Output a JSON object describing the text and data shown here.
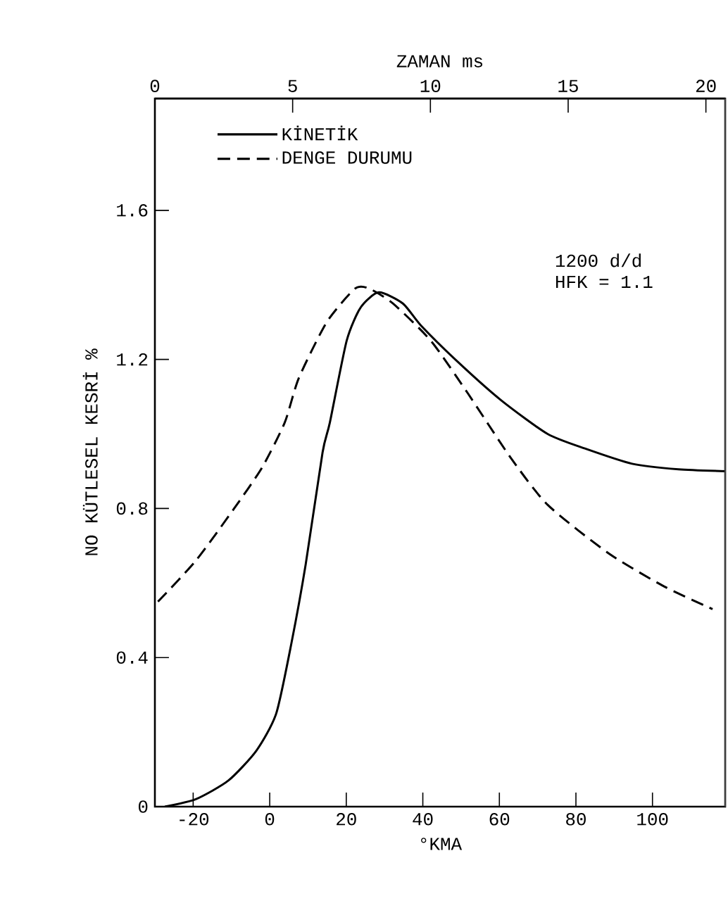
{
  "chart_data": {
    "type": "line",
    "xlabel": "°KMA",
    "ylabel": "NO  KÜTLESEL KESRİ  %",
    "x2label": "ZAMAN  ms",
    "xlim": [
      -30,
      119
    ],
    "xticks": [
      -20,
      0,
      20,
      40,
      60,
      80,
      100
    ],
    "x2lim": [
      0,
      20.7
    ],
    "x2ticks": [
      0,
      5,
      10,
      15,
      20
    ],
    "ylim": [
      0,
      1.9
    ],
    "yticks": [
      0,
      0.4,
      0.8,
      1.2,
      1.6
    ],
    "legend": "top left",
    "grid": false,
    "marker": "none",
    "annotations": [
      "1200 d/d",
      "HFK = 1.1"
    ],
    "series": [
      {
        "name": "KİNETİK",
        "color": "#000000",
        "line_style": "solid",
        "x": [
          -27.4,
          -19.3,
          -10.8,
          -3.5,
          1.7,
          5.7,
          9.4,
          13.8,
          15.7,
          20.1,
          23.8,
          28.5,
          34.8,
          39.6,
          49.5,
          60.5,
          72.6,
          82.6,
          94.7,
          106.8,
          119
        ],
        "values": [
          0,
          0.02,
          0.07,
          0.15,
          0.25,
          0.44,
          0.65,
          0.95,
          1.03,
          1.25,
          1.34,
          1.38,
          1.35,
          1.29,
          1.19,
          1.09,
          1.0,
          0.96,
          0.92,
          0.905,
          0.9
        ]
      },
      {
        "name": "DENGE DURUMU",
        "color": "#000000",
        "line_style": "dashed",
        "x": [
          -29.2,
          -19.3,
          -9.3,
          -2,
          3.9,
          7.6,
          14.9,
          22.3,
          26,
          32.2,
          42.1,
          51.7,
          62.7,
          72.6,
          88.5,
          103.2,
          115.7
        ],
        "values": [
          0.55,
          0.66,
          0.8,
          0.91,
          1.03,
          1.15,
          1.3,
          1.39,
          1.39,
          1.35,
          1.25,
          1.11,
          0.94,
          0.81,
          0.68,
          0.59,
          0.53
        ]
      }
    ]
  }
}
